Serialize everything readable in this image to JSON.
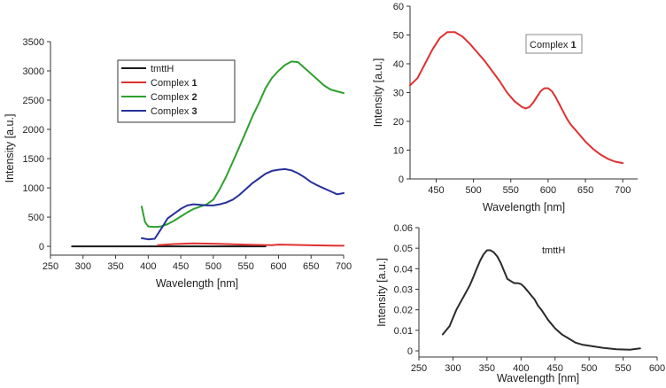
{
  "chart_data": [
    {
      "type": "line",
      "xlabel": "Wavelength [nm]",
      "ylabel": "Intensity [a.u.]",
      "xlim": [
        250,
        700
      ],
      "ylim": [
        -150,
        3500
      ],
      "xticks": [
        "250",
        "300",
        "350",
        "400",
        "450",
        "500",
        "550",
        "600",
        "650",
        "700"
      ],
      "yticks": [
        "0",
        "500",
        "1000",
        "1500",
        "2000",
        "2500",
        "3000",
        "3500"
      ],
      "legend": {
        "placement": "top-left",
        "entries": [
          {
            "text": "tmttH",
            "bold": "",
            "color": "#1a1a1a"
          },
          {
            "text": "Complex ",
            "bold": "1",
            "color": "#e03030"
          },
          {
            "text": "Complex ",
            "bold": "2",
            "color": "#2ea02e"
          },
          {
            "text": "Complex ",
            "bold": "3",
            "color": "#26309a"
          }
        ]
      },
      "series": [
        {
          "color": "#1a1a1a",
          "x": [
            283,
            580
          ],
          "y": [
            0,
            0
          ]
        },
        {
          "color": "#e03030",
          "x": [
            415,
            440,
            470,
            500,
            530,
            560,
            590,
            600,
            620,
            650,
            680,
            700
          ],
          "y": [
            20,
            40,
            50,
            45,
            35,
            25,
            20,
            30,
            25,
            18,
            12,
            10
          ]
        },
        {
          "color": "#2ea02e",
          "x": [
            390,
            395,
            400,
            410,
            420,
            430,
            440,
            450,
            460,
            470,
            480,
            490,
            500,
            510,
            520,
            530,
            540,
            550,
            560,
            570,
            580,
            590,
            600,
            610,
            620,
            630,
            640,
            650,
            660,
            670,
            680,
            690,
            700
          ],
          "y": [
            680,
            420,
            340,
            330,
            340,
            380,
            440,
            510,
            580,
            640,
            680,
            720,
            800,
            980,
            1200,
            1450,
            1700,
            1960,
            2220,
            2450,
            2700,
            2880,
            3000,
            3100,
            3160,
            3150,
            3050,
            2950,
            2850,
            2750,
            2680,
            2650,
            2620
          ]
        },
        {
          "color": "#26309a",
          "x": [
            390,
            400,
            410,
            420,
            430,
            440,
            450,
            460,
            470,
            480,
            490,
            500,
            510,
            520,
            530,
            540,
            550,
            560,
            570,
            580,
            590,
            600,
            610,
            620,
            630,
            640,
            650,
            660,
            670,
            680,
            690,
            700
          ],
          "y": [
            140,
            120,
            130,
            300,
            480,
            560,
            640,
            700,
            720,
            710,
            700,
            700,
            720,
            750,
            800,
            880,
            980,
            1080,
            1160,
            1240,
            1290,
            1310,
            1320,
            1300,
            1250,
            1180,
            1100,
            1040,
            990,
            940,
            890,
            910
          ]
        }
      ]
    },
    {
      "type": "line",
      "xlabel": "Wavelength [nm]",
      "ylabel": "Intensity [a.u.]",
      "xlim": [
        415,
        720
      ],
      "ylim": [
        0,
        60
      ],
      "xticks": [
        "450",
        "500",
        "550",
        "600",
        "650",
        "700"
      ],
      "yticks": [
        "0",
        "10",
        "20",
        "30",
        "40",
        "50",
        "60"
      ],
      "annotation": {
        "text": "Complex ",
        "bold": "1"
      },
      "series": [
        {
          "color": "#e03030",
          "x": [
            415,
            425,
            435,
            445,
            455,
            465,
            475,
            485,
            495,
            505,
            515,
            525,
            535,
            545,
            555,
            565,
            570,
            575,
            580,
            585,
            590,
            595,
            600,
            605,
            610,
            615,
            620,
            625,
            630,
            640,
            650,
            660,
            670,
            680,
            690,
            700
          ],
          "y": [
            32.5,
            35,
            40,
            45,
            49,
            51,
            51,
            49.5,
            47,
            44,
            41,
            37.5,
            34,
            30,
            27,
            25,
            24.5,
            25,
            26.5,
            28.5,
            30.5,
            31.5,
            31.5,
            30.5,
            28.5,
            26,
            23.5,
            21,
            19,
            16,
            13,
            10.5,
            8.5,
            7,
            6,
            5.5
          ]
        }
      ]
    },
    {
      "type": "line",
      "xlabel": "Wavelength [nm]",
      "ylabel": "Intensity [a.u.]",
      "xlim": [
        250,
        600
      ],
      "ylim": [
        -0.003,
        0.06
      ],
      "xticks": [
        "250",
        "300",
        "350",
        "400",
        "450",
        "500",
        "550",
        "600"
      ],
      "yticks": [
        "0",
        "0.01",
        "0.02",
        "0.03",
        "0.04",
        "0.05",
        "0.06"
      ],
      "annotation": {
        "text": "tmttH",
        "bold": ""
      },
      "series": [
        {
          "color": "#2a2a2a",
          "x": [
            285,
            290,
            295,
            300,
            305,
            310,
            315,
            320,
            325,
            330,
            335,
            340,
            345,
            350,
            355,
            360,
            365,
            370,
            375,
            380,
            385,
            390,
            395,
            400,
            405,
            410,
            415,
            420,
            425,
            430,
            440,
            450,
            460,
            470,
            480,
            490,
            500,
            520,
            540,
            560,
            575
          ],
          "y": [
            0.008,
            0.01,
            0.012,
            0.016,
            0.02,
            0.023,
            0.026,
            0.029,
            0.032,
            0.036,
            0.04,
            0.044,
            0.047,
            0.049,
            0.049,
            0.048,
            0.046,
            0.043,
            0.039,
            0.035,
            0.034,
            0.033,
            0.033,
            0.0325,
            0.031,
            0.029,
            0.027,
            0.025,
            0.022,
            0.02,
            0.015,
            0.011,
            0.008,
            0.006,
            0.004,
            0.003,
            0.0025,
            0.0015,
            0.0008,
            0.0006,
            0.0012
          ]
        }
      ]
    }
  ]
}
